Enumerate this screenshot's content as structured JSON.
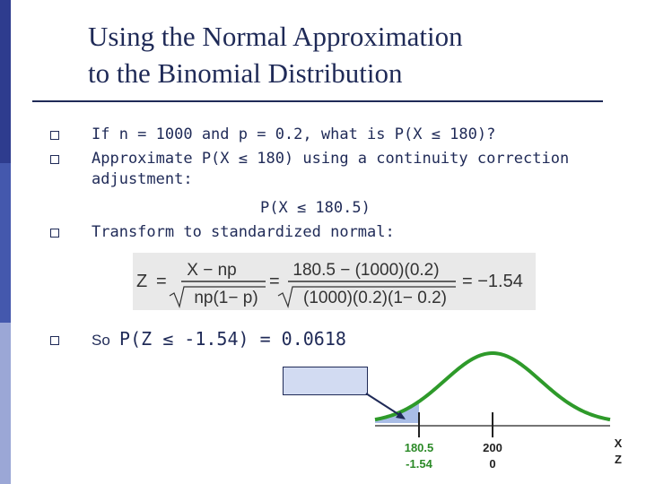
{
  "title": {
    "line1": "Using the Normal Approximation",
    "line2": "to the Binomial Distribution"
  },
  "bullets": {
    "b1": "If n = 1000 and p = 0.2, what is P(X ≤ 180)?",
    "b2_line1": "Approximate P(X ≤ 180) using a continuity correction",
    "b2_line2": "adjustment:",
    "corrected": "P(X ≤ 180.5)",
    "b3": "Transform to standardized normal:",
    "b4_prefix": "So",
    "b4_value": "P(Z ≤ -1.54) = 0.0618"
  },
  "formula": {
    "z": "Z",
    "eq": "=",
    "num1": "X − np",
    "den1": "np(1− p)",
    "num2": "180.5 − (1000)(0.2)",
    "den2": "(1000)(0.2)(1− 0.2)",
    "result": "= −1.54"
  },
  "axis": {
    "tick1_x": "180.5",
    "tick1_z": "-1.54",
    "tick2_x": "200",
    "tick2_z": "0",
    "label_x": "X",
    "label_z": "Z"
  },
  "colors": {
    "curve": "#2e9a2a",
    "shade": "#a9bde6",
    "text": "#1f2a57",
    "accent": "#2c8a28"
  }
}
